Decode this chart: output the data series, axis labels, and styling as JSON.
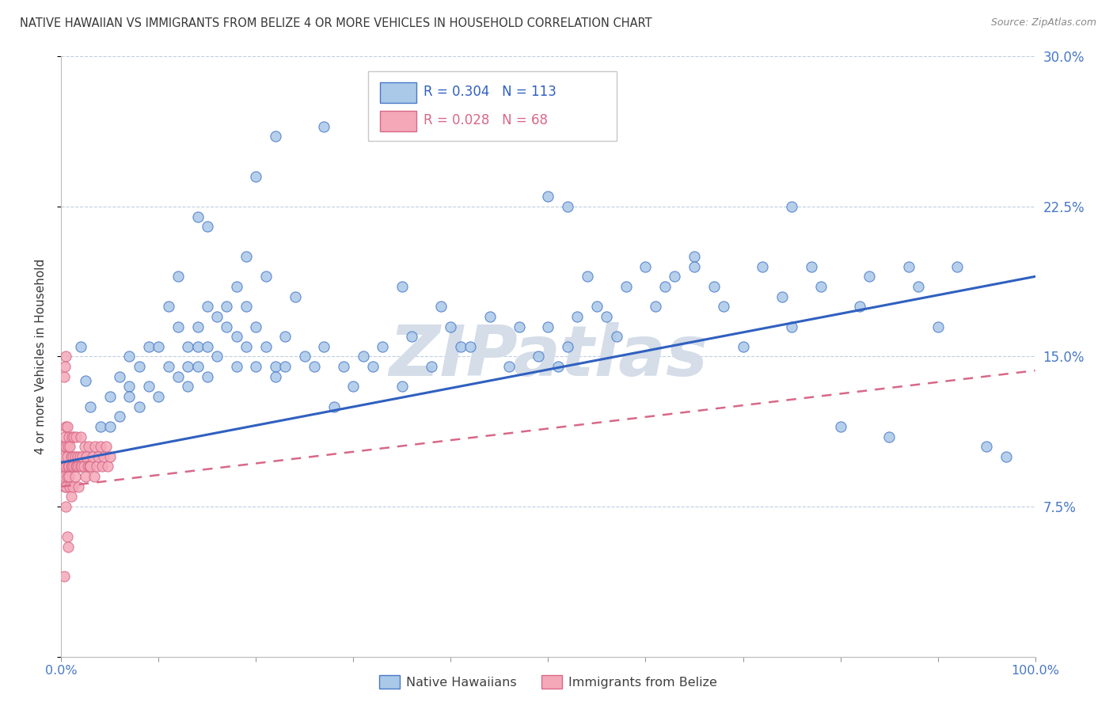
{
  "title": "NATIVE HAWAIIAN VS IMMIGRANTS FROM BELIZE 4 OR MORE VEHICLES IN HOUSEHOLD CORRELATION CHART",
  "source": "Source: ZipAtlas.com",
  "ylabel": "4 or more Vehicles in Household",
  "xlim": [
    0.0,
    1.0
  ],
  "ylim": [
    0.0,
    0.3
  ],
  "xtick_positions": [
    0.0,
    0.1,
    0.2,
    0.3,
    0.4,
    0.5,
    0.6,
    0.7,
    0.8,
    0.9,
    1.0
  ],
  "xtick_labels": [
    "0.0%",
    "",
    "",
    "",
    "",
    "",
    "",
    "",
    "",
    "",
    "100.0%"
  ],
  "ytick_positions": [
    0.0,
    0.075,
    0.15,
    0.225,
    0.3
  ],
  "ytick_labels_right": [
    "",
    "7.5%",
    "15.0%",
    "22.5%",
    "30.0%"
  ],
  "legend_blue_text": "R = 0.304   N = 113",
  "legend_pink_text": "R = 0.028   N = 68",
  "scatter_blue_face": "#aac8e8",
  "scatter_blue_edge": "#4878c8",
  "scatter_pink_face": "#f4a8b8",
  "scatter_pink_edge": "#d86888",
  "line_blue_color": "#3060c0",
  "line_pink_color": "#d86888",
  "axis_tick_color": "#4878c8",
  "grid_color": "#c0cfe0",
  "title_color": "#383838",
  "source_color": "#888888",
  "ylabel_color": "#383838",
  "watermark_text": "ZIPatlas",
  "watermark_color": "#d4dde8",
  "legend_label_blue": "Native Hawaiians",
  "legend_label_pink": "Immigrants from Belize",
  "blue_line_x0": 0.0,
  "blue_line_y0": 0.097,
  "blue_line_x1": 1.0,
  "blue_line_y1": 0.19,
  "pink_line_x0": 0.0,
  "pink_line_y0": 0.085,
  "pink_line_x1": 1.0,
  "pink_line_y1": 0.143,
  "blue_x": [
    0.02,
    0.025,
    0.03,
    0.04,
    0.05,
    0.05,
    0.06,
    0.06,
    0.07,
    0.07,
    0.07,
    0.08,
    0.08,
    0.09,
    0.09,
    0.1,
    0.1,
    0.11,
    0.11,
    0.12,
    0.12,
    0.12,
    0.13,
    0.13,
    0.13,
    0.14,
    0.14,
    0.14,
    0.15,
    0.15,
    0.15,
    0.16,
    0.16,
    0.17,
    0.17,
    0.18,
    0.18,
    0.18,
    0.19,
    0.19,
    0.2,
    0.2,
    0.21,
    0.21,
    0.22,
    0.22,
    0.23,
    0.23,
    0.24,
    0.25,
    0.26,
    0.27,
    0.28,
    0.29,
    0.3,
    0.31,
    0.32,
    0.33,
    0.35,
    0.36,
    0.38,
    0.39,
    0.4,
    0.41,
    0.42,
    0.44,
    0.46,
    0.47,
    0.49,
    0.5,
    0.51,
    0.52,
    0.53,
    0.54,
    0.55,
    0.56,
    0.57,
    0.58,
    0.6,
    0.61,
    0.62,
    0.63,
    0.65,
    0.67,
    0.68,
    0.7,
    0.72,
    0.74,
    0.75,
    0.77,
    0.78,
    0.8,
    0.82,
    0.83,
    0.85,
    0.87,
    0.88,
    0.9,
    0.92,
    0.95,
    0.97,
    0.45,
    0.27,
    0.5,
    0.52,
    0.65,
    0.75,
    0.35,
    0.15,
    0.2,
    0.22,
    0.14,
    0.19
  ],
  "blue_y": [
    0.155,
    0.138,
    0.125,
    0.115,
    0.13,
    0.115,
    0.12,
    0.14,
    0.135,
    0.15,
    0.13,
    0.145,
    0.125,
    0.135,
    0.155,
    0.155,
    0.13,
    0.175,
    0.145,
    0.19,
    0.14,
    0.165,
    0.145,
    0.155,
    0.135,
    0.165,
    0.145,
    0.155,
    0.175,
    0.155,
    0.14,
    0.17,
    0.15,
    0.165,
    0.175,
    0.185,
    0.145,
    0.16,
    0.155,
    0.175,
    0.165,
    0.145,
    0.19,
    0.155,
    0.145,
    0.14,
    0.16,
    0.145,
    0.18,
    0.15,
    0.145,
    0.155,
    0.125,
    0.145,
    0.135,
    0.15,
    0.145,
    0.155,
    0.135,
    0.16,
    0.145,
    0.175,
    0.165,
    0.155,
    0.155,
    0.17,
    0.145,
    0.165,
    0.15,
    0.165,
    0.145,
    0.155,
    0.17,
    0.19,
    0.175,
    0.17,
    0.16,
    0.185,
    0.195,
    0.175,
    0.185,
    0.19,
    0.2,
    0.185,
    0.175,
    0.155,
    0.195,
    0.18,
    0.165,
    0.195,
    0.185,
    0.115,
    0.175,
    0.19,
    0.11,
    0.195,
    0.185,
    0.165,
    0.195,
    0.105,
    0.1,
    0.27,
    0.265,
    0.23,
    0.225,
    0.195,
    0.225,
    0.185,
    0.215,
    0.24,
    0.26,
    0.22,
    0.2
  ],
  "pink_x": [
    0.002,
    0.003,
    0.003,
    0.004,
    0.004,
    0.004,
    0.005,
    0.005,
    0.005,
    0.005,
    0.005,
    0.006,
    0.006,
    0.006,
    0.007,
    0.007,
    0.008,
    0.008,
    0.008,
    0.009,
    0.009,
    0.01,
    0.01,
    0.01,
    0.011,
    0.011,
    0.012,
    0.012,
    0.013,
    0.013,
    0.014,
    0.014,
    0.015,
    0.015,
    0.016,
    0.017,
    0.018,
    0.018,
    0.019,
    0.02,
    0.02,
    0.021,
    0.022,
    0.023,
    0.024,
    0.025,
    0.026,
    0.027,
    0.028,
    0.029,
    0.03,
    0.032,
    0.034,
    0.035,
    0.036,
    0.038,
    0.04,
    0.042,
    0.044,
    0.046,
    0.048,
    0.05,
    0.003,
    0.004,
    0.005,
    0.006,
    0.007,
    0.003
  ],
  "pink_y": [
    0.095,
    0.105,
    0.09,
    0.1,
    0.085,
    0.11,
    0.095,
    0.115,
    0.105,
    0.085,
    0.075,
    0.1,
    0.09,
    0.115,
    0.095,
    0.105,
    0.09,
    0.11,
    0.095,
    0.105,
    0.085,
    0.1,
    0.095,
    0.08,
    0.095,
    0.11,
    0.1,
    0.085,
    0.095,
    0.11,
    0.09,
    0.1,
    0.095,
    0.11,
    0.095,
    0.1,
    0.095,
    0.085,
    0.1,
    0.095,
    0.11,
    0.095,
    0.1,
    0.095,
    0.105,
    0.09,
    0.1,
    0.095,
    0.105,
    0.095,
    0.095,
    0.1,
    0.09,
    0.105,
    0.095,
    0.1,
    0.105,
    0.095,
    0.1,
    0.105,
    0.095,
    0.1,
    0.14,
    0.145,
    0.15,
    0.06,
    0.055,
    0.04
  ]
}
